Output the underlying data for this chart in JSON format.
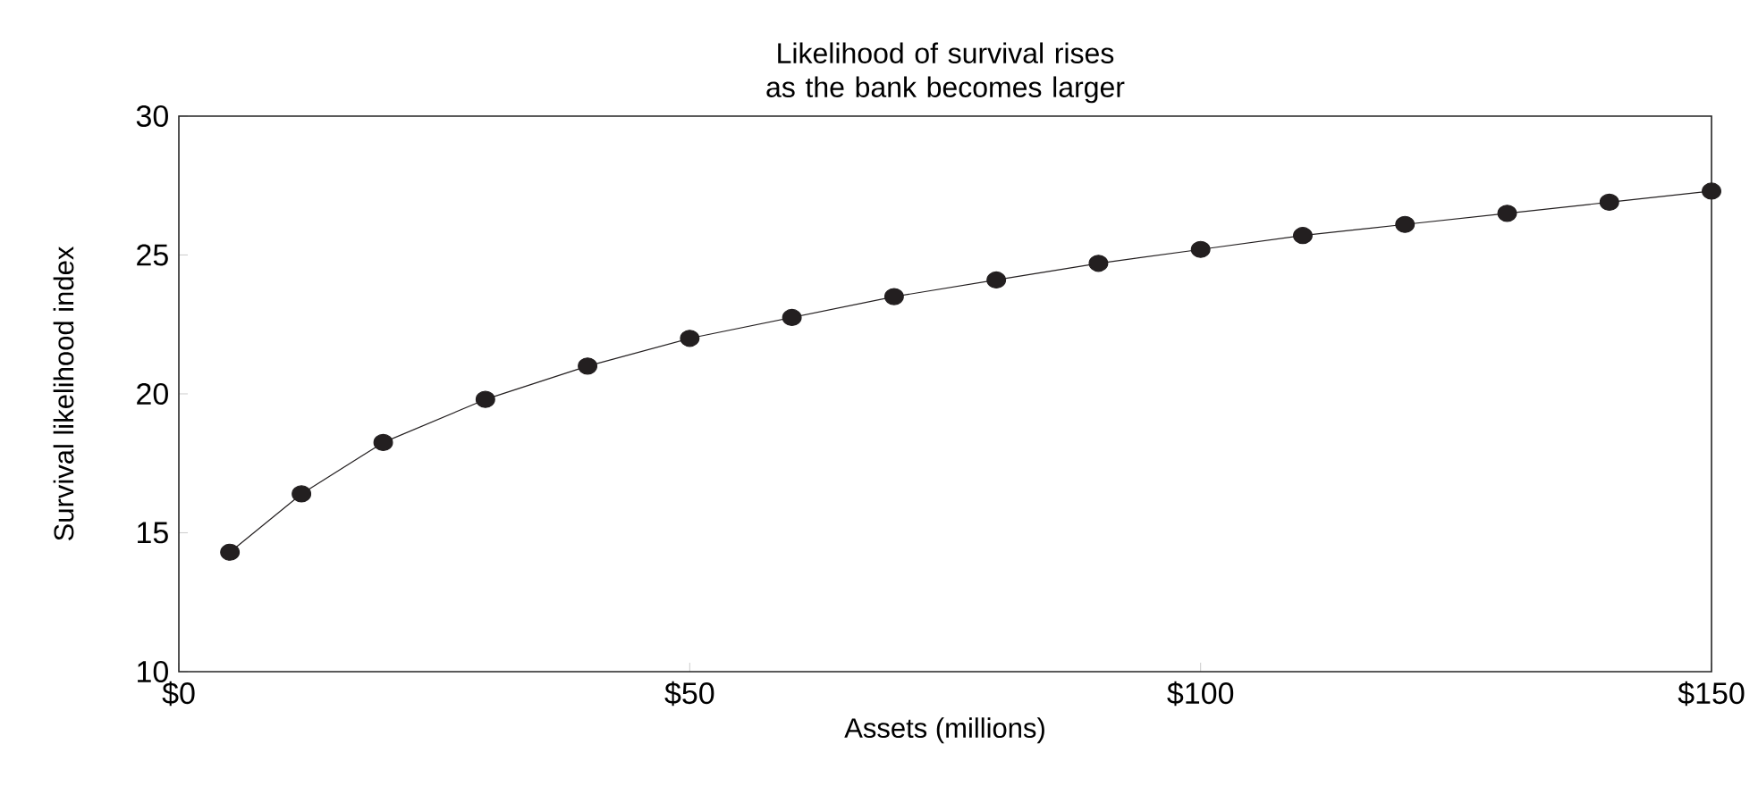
{
  "chart_data": {
    "type": "line",
    "title": "Likelihood of survival rises as the bank becomes larger",
    "xlabel": "Assets (millions)",
    "ylabel": "Survival likelihood index",
    "x": [
      5,
      12,
      20,
      30,
      40,
      50,
      60,
      70,
      80,
      90,
      100,
      110,
      120,
      130,
      140,
      150
    ],
    "series": [
      {
        "color": "#231f20",
        "values": [
          14.3,
          16.4,
          18.25,
          19.8,
          21.0,
          22.0,
          22.75,
          23.5,
          24.1,
          24.7,
          25.2,
          25.7,
          26.1,
          26.5,
          26.9,
          27.3
        ]
      }
    ],
    "xlim": [
      0,
      150
    ],
    "ylim": [
      10,
      30
    ],
    "xticks": [
      {
        "value": 0,
        "label": "$0"
      },
      {
        "value": 50,
        "label": "$50"
      },
      {
        "value": 100,
        "label": "$100"
      },
      {
        "value": 150,
        "label": "$150"
      }
    ],
    "yticks": [
      10,
      15,
      20,
      25,
      30
    ],
    "marker": "circle",
    "line_style": "solid",
    "grid": false
  }
}
